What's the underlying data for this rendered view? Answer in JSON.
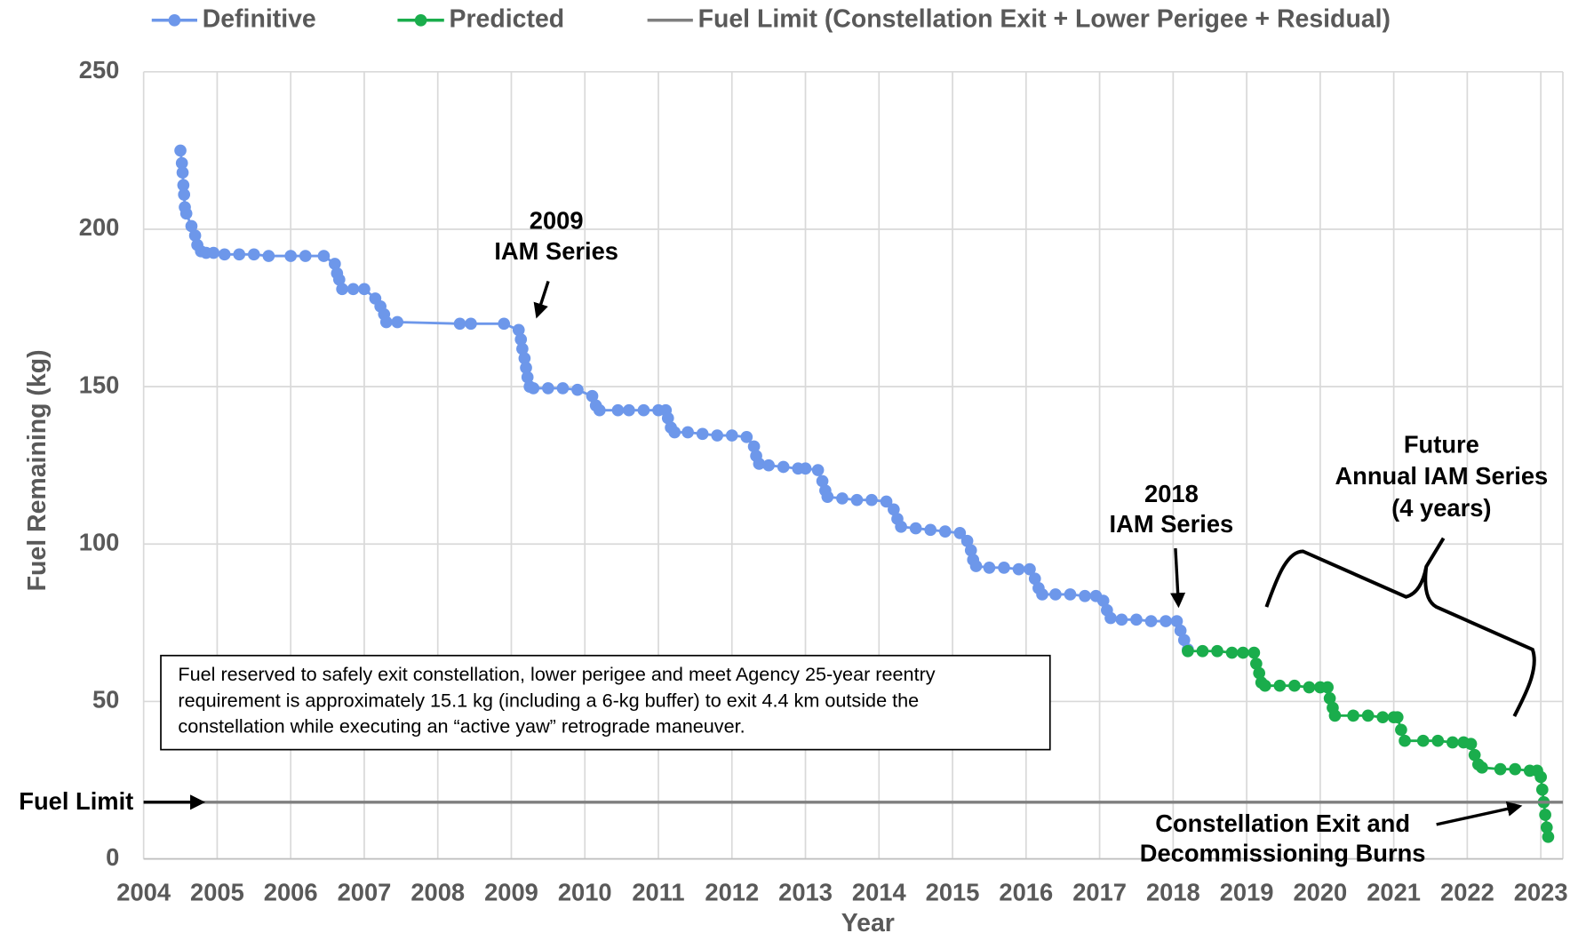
{
  "chart_data": {
    "type": "line",
    "x_label": "Year",
    "y_label": "Fuel Remaining (kg)",
    "xlim": [
      2004,
      2023.3
    ],
    "xticks": [
      2004,
      2005,
      2006,
      2007,
      2008,
      2009,
      2010,
      2011,
      2012,
      2013,
      2014,
      2015,
      2016,
      2017,
      2018,
      2019,
      2020,
      2021,
      2022,
      2023
    ],
    "ylim": [
      0,
      250
    ],
    "yticks": [
      0,
      50,
      100,
      150,
      200,
      250
    ],
    "grid": true,
    "legend": "top",
    "series": [
      {
        "name": "Definitive",
        "color": "#6d97ea",
        "marker": true,
        "x": [
          2004.5,
          2004.52,
          2004.53,
          2004.54,
          2004.55,
          2004.56,
          2004.58,
          2004.65,
          2004.7,
          2004.73,
          2004.78,
          2004.85,
          2004.95,
          2005.1,
          2005.3,
          2005.5,
          2005.7,
          2006.0,
          2006.2,
          2006.45,
          2006.6,
          2006.63,
          2006.66,
          2006.7,
          2006.85,
          2007.0,
          2007.15,
          2007.22,
          2007.27,
          2007.3,
          2007.45,
          2008.3,
          2008.45,
          2008.9,
          2009.1,
          2009.13,
          2009.15,
          2009.18,
          2009.2,
          2009.22,
          2009.25,
          2009.3,
          2009.5,
          2009.7,
          2009.9,
          2010.1,
          2010.15,
          2010.2,
          2010.45,
          2010.6,
          2010.8,
          2011.0,
          2011.1,
          2011.13,
          2011.17,
          2011.22,
          2011.4,
          2011.6,
          2011.8,
          2012.0,
          2012.2,
          2012.3,
          2012.33,
          2012.37,
          2012.5,
          2012.7,
          2012.9,
          2013.0,
          2013.17,
          2013.23,
          2013.27,
          2013.3,
          2013.5,
          2013.7,
          2013.9,
          2014.1,
          2014.2,
          2014.25,
          2014.3,
          2014.5,
          2014.7,
          2014.9,
          2015.1,
          2015.2,
          2015.25,
          2015.28,
          2015.32,
          2015.5,
          2015.7,
          2015.9,
          2016.05,
          2016.12,
          2016.17,
          2016.22,
          2016.4,
          2016.6,
          2016.8,
          2016.95,
          2017.05,
          2017.1,
          2017.15,
          2017.3,
          2017.5,
          2017.7,
          2017.9,
          2018.05,
          2018.1,
          2018.15,
          2018.2
        ],
        "values": [
          225,
          221,
          218,
          214,
          211,
          207,
          205,
          201,
          198,
          195,
          193,
          192.5,
          192.5,
          192,
          192,
          192,
          191.5,
          191.5,
          191.5,
          191.5,
          189,
          186,
          184,
          181,
          181,
          181,
          178,
          175.5,
          173,
          170.5,
          170.5,
          170,
          170,
          170,
          168,
          165,
          162,
          159,
          156,
          153,
          150,
          149.5,
          149.5,
          149.5,
          149,
          147,
          144,
          142.5,
          142.5,
          142.5,
          142.5,
          142.5,
          142.5,
          140,
          137,
          135.5,
          135.5,
          135,
          134.5,
          134.5,
          134,
          131,
          128,
          125.5,
          125,
          124.5,
          124,
          124,
          123.5,
          120,
          117,
          115,
          114.5,
          114,
          114,
          113.5,
          111,
          108,
          105.5,
          105,
          104.5,
          104,
          103.5,
          101,
          98,
          95,
          93,
          92.5,
          92.5,
          92,
          92,
          89,
          86,
          84,
          84,
          84,
          83.5,
          83.5,
          82,
          79,
          76.5,
          76,
          76,
          75.5,
          75.5,
          75.5,
          72.5,
          69.5,
          66.5
        ]
      },
      {
        "name": "Predicted",
        "color": "#1aad4c",
        "marker": true,
        "x": [
          2018.2,
          2018.4,
          2018.6,
          2018.8,
          2018.95,
          2019.1,
          2019.13,
          2019.17,
          2019.2,
          2019.25,
          2019.45,
          2019.65,
          2019.85,
          2020.0,
          2020.1,
          2020.13,
          2020.17,
          2020.2,
          2020.45,
          2020.65,
          2020.85,
          2021.0,
          2021.05,
          2021.1,
          2021.15,
          2021.4,
          2021.6,
          2021.8,
          2021.95,
          2022.05,
          2022.1,
          2022.15,
          2022.2,
          2022.45,
          2022.65,
          2022.85,
          2022.95,
          2023.0,
          2023.02,
          2023.04,
          2023.06,
          2023.08,
          2023.1
        ],
        "values": [
          66,
          66,
          66,
          65.5,
          65.5,
          65.5,
          62,
          59,
          56,
          55,
          55,
          55,
          54.5,
          54.5,
          54.5,
          51,
          48,
          45.5,
          45.5,
          45.5,
          45,
          45,
          45,
          41,
          37.5,
          37.5,
          37.5,
          37,
          37,
          36.5,
          33,
          30,
          29,
          28.5,
          28.5,
          28,
          28,
          26,
          22,
          18,
          14,
          10,
          7
        ]
      },
      {
        "name": "Fuel Limit (Constellation Exit + Lower Perigee + Residual)",
        "color": "#7f7f7f",
        "marker": false,
        "x": [
          2004,
          2023.3
        ],
        "values": [
          18,
          18
        ]
      }
    ],
    "annotations": [
      {
        "lines": [
          "2009",
          "IAM Series"
        ]
      },
      {
        "lines": [
          "2018",
          "IAM Series"
        ]
      },
      {
        "lines": [
          "Future",
          "Annual IAM Series",
          "(4 years)"
        ]
      },
      {
        "lines": [
          "Constellation Exit and",
          "Decommissioning Burns"
        ]
      },
      {
        "lines": [
          "Fuel Limit"
        ]
      }
    ],
    "note": {
      "lines": [
        "Fuel reserved to safely exit constellation, lower perigee and meet Agency 25-year reentry",
        "requirement is approximately 15.1 kg (including a 6-kg buffer) to exit 4.4 km outside the",
        "constellation while executing an “active yaw” retrograde maneuver."
      ]
    }
  }
}
